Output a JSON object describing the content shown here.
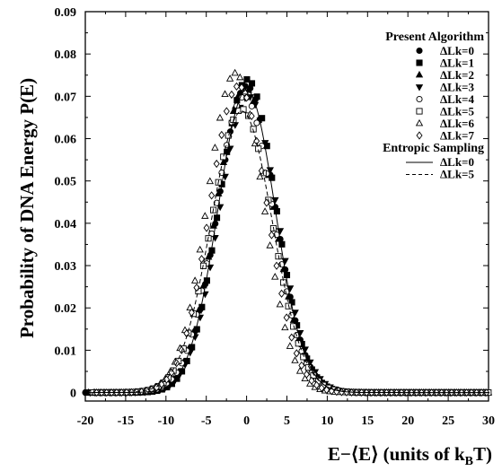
{
  "chart_data": {
    "type": "scatter",
    "title": "",
    "xlabel": "E−⟨E⟩ (units of k",
    "xlabel_sub": "B",
    "xlabel_tail": "T)",
    "ylabel": "Probability of DNA Energy P(E)",
    "xlim": [
      -20,
      30
    ],
    "ylim": [
      -0.002,
      0.09
    ],
    "x_ticks": [
      -20,
      -15,
      -10,
      -5,
      0,
      5,
      10,
      15,
      20,
      25,
      30
    ],
    "y_ticks": [
      0,
      0.01,
      0.02,
      0.03,
      0.04,
      0.05,
      0.06,
      0.07,
      0.08,
      0.09
    ],
    "x_tick_labels": [
      "-20",
      "-15",
      "-10",
      "-5",
      "0",
      "5",
      "10",
      "15",
      "20",
      "25",
      "30"
    ],
    "y_tick_labels": [
      "0",
      "0.01",
      "0.02",
      "0.03",
      "0.04",
      "0.05",
      "0.06",
      "0.07",
      "0.08",
      "0.09"
    ],
    "grid": false,
    "legend_position": "top-right",
    "legend_groups": [
      {
        "heading": "Present Algorithm",
        "entries": [
          {
            "label": "ΔLk=0",
            "marker": "filled-circle"
          },
          {
            "label": "ΔLk=1",
            "marker": "filled-square"
          },
          {
            "label": "ΔLk=2",
            "marker": "filled-triangle-up"
          },
          {
            "label": "ΔLk=3",
            "marker": "filled-triangle-down"
          },
          {
            "label": "ΔLk=4",
            "marker": "open-circle"
          },
          {
            "label": "ΔLk=5",
            "marker": "open-square"
          },
          {
            "label": "ΔLk=6",
            "marker": "open-triangle-up"
          },
          {
            "label": "ΔLk=7",
            "marker": "open-diamond"
          }
        ]
      },
      {
        "heading": "Entropic Sampling",
        "entries": [
          {
            "label": "ΔLk=0",
            "marker": "solid-line"
          },
          {
            "label": "ΔLk=5",
            "marker": "dashed-line"
          }
        ]
      }
    ],
    "series": [
      {
        "label": "ΔLk=0",
        "style": "filled-circle",
        "peak": 0.0725,
        "mu": 0.0,
        "sigma": 3.55,
        "x_start": -20,
        "x_step": 0.62
      },
      {
        "label": "ΔLk=1",
        "style": "filled-square",
        "peak": 0.074,
        "mu": 0.1,
        "sigma": 3.5,
        "x_start": -19.8,
        "x_step": 0.62
      },
      {
        "label": "ΔLk=2",
        "style": "filled-triangle-up",
        "peak": 0.072,
        "mu": -0.2,
        "sigma": 3.55,
        "x_start": -19.6,
        "x_step": 0.62
      },
      {
        "label": "ΔLk=3",
        "style": "filled-triangle-down",
        "peak": 0.07,
        "mu": 0.2,
        "sigma": 3.6,
        "x_start": -19.4,
        "x_step": 0.62
      },
      {
        "label": "ΔLk=4",
        "style": "open-circle",
        "peak": 0.07,
        "mu": -0.3,
        "sigma": 3.6,
        "x_start": -19.2,
        "x_step": 0.62
      },
      {
        "label": "ΔLk=5",
        "style": "open-square",
        "peak": 0.067,
        "mu": -0.6,
        "sigma": 3.75,
        "x_start": -19.0,
        "x_step": 0.62
      },
      {
        "label": "ΔLk=6",
        "style": "open-triangle-up",
        "peak": 0.0755,
        "mu": -1.4,
        "sigma": 3.45,
        "x_start": -18.8,
        "x_step": 0.62
      },
      {
        "label": "ΔLk=7",
        "style": "open-diamond",
        "peak": 0.0725,
        "mu": -1.0,
        "sigma": 3.55,
        "x_start": -18.6,
        "x_step": 0.62
      },
      {
        "label": "Entropic Sampling ΔLk=0",
        "style": "solid-line",
        "peak": 0.0715,
        "mu": 0.0,
        "sigma": 3.55,
        "x_start": -20,
        "x_step": 0.1
      },
      {
        "label": "Entropic Sampling ΔLk=5",
        "style": "dashed-line",
        "peak": 0.0665,
        "mu": -0.6,
        "sigma": 3.8,
        "x_start": -20,
        "x_step": 0.1
      }
    ]
  }
}
